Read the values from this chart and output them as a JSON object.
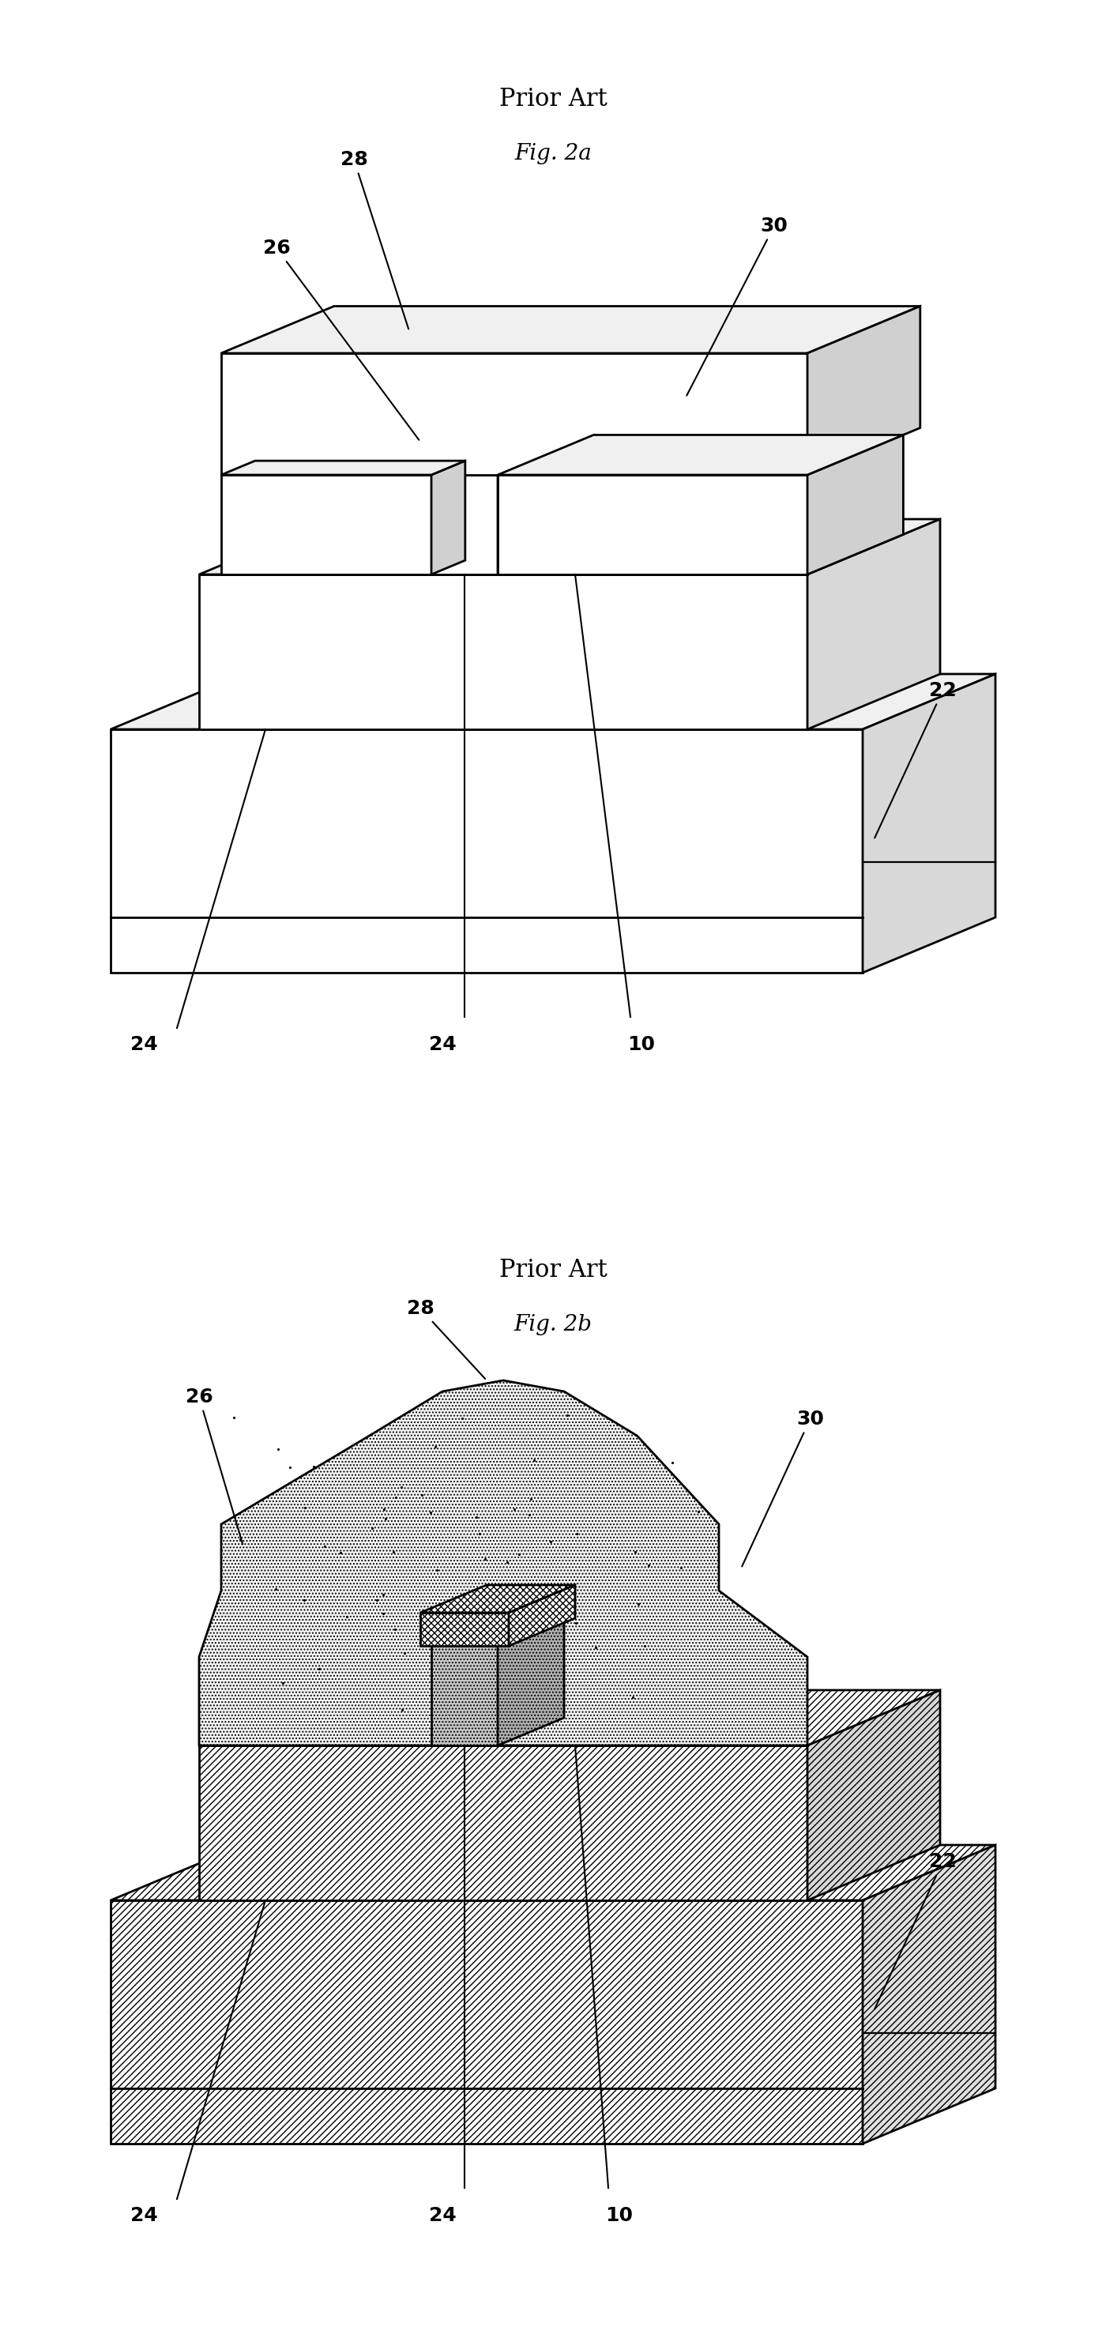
{
  "fig_title_1": "Prior Art",
  "fig_label_1": "Fig. 2a",
  "fig_title_2": "Prior Art",
  "fig_label_2": "Fig. 2b",
  "bg_color": "#ffffff",
  "line_color": "#000000",
  "label_fontsize": 16,
  "title_fontsize": 22,
  "sublabel_fontsize": 20
}
